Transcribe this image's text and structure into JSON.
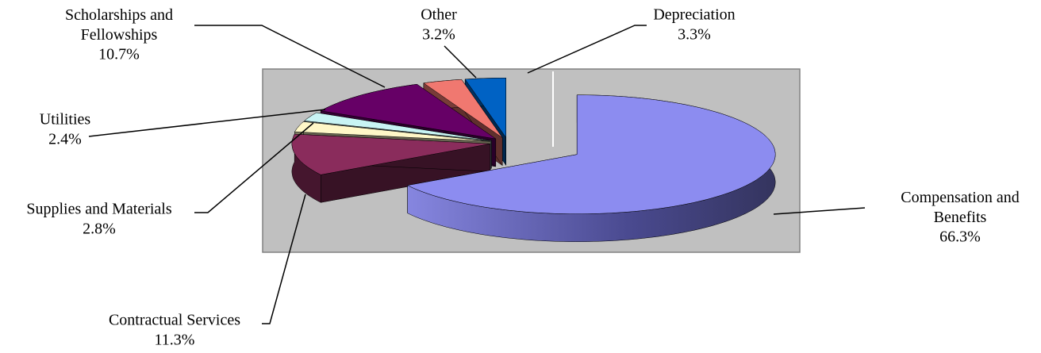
{
  "chart_data": {
    "type": "pie3d",
    "categories": [
      "Compensation and Benefits",
      "Contractual Services",
      "Supplies and Materials",
      "Utilities",
      "Scholarships and Fellowships",
      "Other",
      "Depreciation"
    ],
    "values": [
      66.3,
      11.3,
      2.8,
      2.4,
      10.7,
      3.2,
      3.3
    ],
    "value_labels": [
      "66.3%",
      "11.3%",
      "2.8%",
      "2.4%",
      "10.7%",
      "3.2%",
      "3.3%"
    ],
    "colors": [
      "#8c8cf0",
      "#8a2c5c",
      "#fff8c8",
      "#c8f4f4",
      "#660066",
      "#f07870",
      "#0062c4"
    ]
  }
}
